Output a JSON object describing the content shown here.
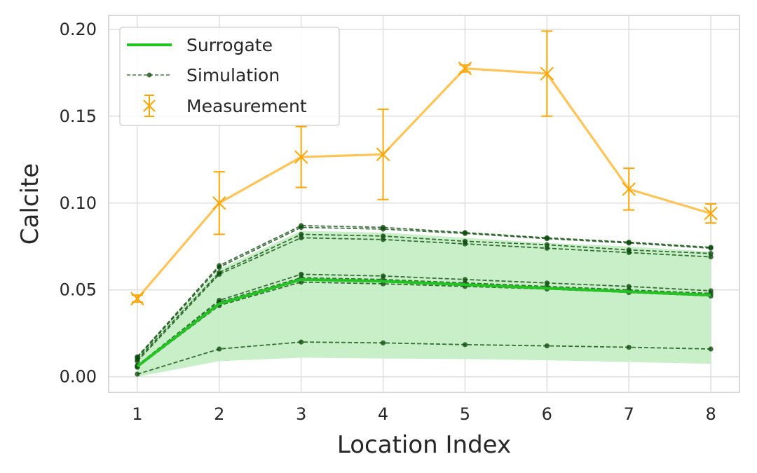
{
  "chart_data": {
    "type": "line",
    "title": "",
    "xlabel": "Location Index",
    "ylabel": "Calcite",
    "x": [
      1,
      2,
      3,
      4,
      5,
      6,
      7,
      8
    ],
    "xlim": [
      0.65,
      8.35
    ],
    "ylim": [
      -0.009,
      0.208
    ],
    "xticks": [
      1,
      2,
      3,
      4,
      5,
      6,
      7,
      8
    ],
    "yticks": [
      0.0,
      0.05,
      0.1,
      0.15,
      0.2
    ],
    "ytick_labels": [
      "0.00",
      "0.05",
      "0.10",
      "0.15",
      "0.20"
    ],
    "grid": true,
    "legend_position": "upper-left",
    "legend": [
      "Surrogate",
      "Simulation",
      "Measurement"
    ],
    "surrogate": {
      "name": "Surrogate",
      "color": "#22c422",
      "values": [
        0.006,
        0.042,
        0.056,
        0.055,
        0.053,
        0.051,
        0.049,
        0.047
      ],
      "band_lower": [
        0.0,
        0.009,
        0.011,
        0.0105,
        0.0102,
        0.0095,
        0.0085,
        0.0075
      ],
      "band_upper": [
        0.012,
        0.062,
        0.084,
        0.083,
        0.08,
        0.077,
        0.075,
        0.072
      ],
      "band_color": "#c3edc3"
    },
    "simulation": {
      "name": "Simulation",
      "color": "#0c4a0c",
      "runs": [
        [
          0.0115,
          0.064,
          0.087,
          0.086,
          0.083,
          0.08,
          0.0775,
          0.0745
        ],
        [
          0.011,
          0.063,
          0.086,
          0.085,
          0.0825,
          0.0795,
          0.077,
          0.074
        ],
        [
          0.01,
          0.06,
          0.082,
          0.081,
          0.078,
          0.076,
          0.073,
          0.071
        ],
        [
          0.009,
          0.059,
          0.08,
          0.079,
          0.0765,
          0.074,
          0.0715,
          0.069
        ],
        [
          0.0065,
          0.044,
          0.059,
          0.058,
          0.056,
          0.054,
          0.052,
          0.0495
        ],
        [
          0.006,
          0.043,
          0.057,
          0.056,
          0.054,
          0.052,
          0.05,
          0.048
        ],
        [
          0.0055,
          0.041,
          0.0545,
          0.0535,
          0.052,
          0.0505,
          0.0485,
          0.0465
        ],
        [
          0.0015,
          0.016,
          0.02,
          0.0195,
          0.0185,
          0.0178,
          0.017,
          0.016
        ]
      ]
    },
    "measurement": {
      "name": "Measurement",
      "color": "#ffa500",
      "line_color": "#ffc04d",
      "values": [
        0.045,
        0.1,
        0.1265,
        0.128,
        0.1775,
        0.1745,
        0.108,
        0.094
      ],
      "errors": [
        0.002,
        0.018,
        0.0175,
        0.026,
        0.002,
        0.0245,
        0.012,
        0.0055
      ]
    }
  }
}
